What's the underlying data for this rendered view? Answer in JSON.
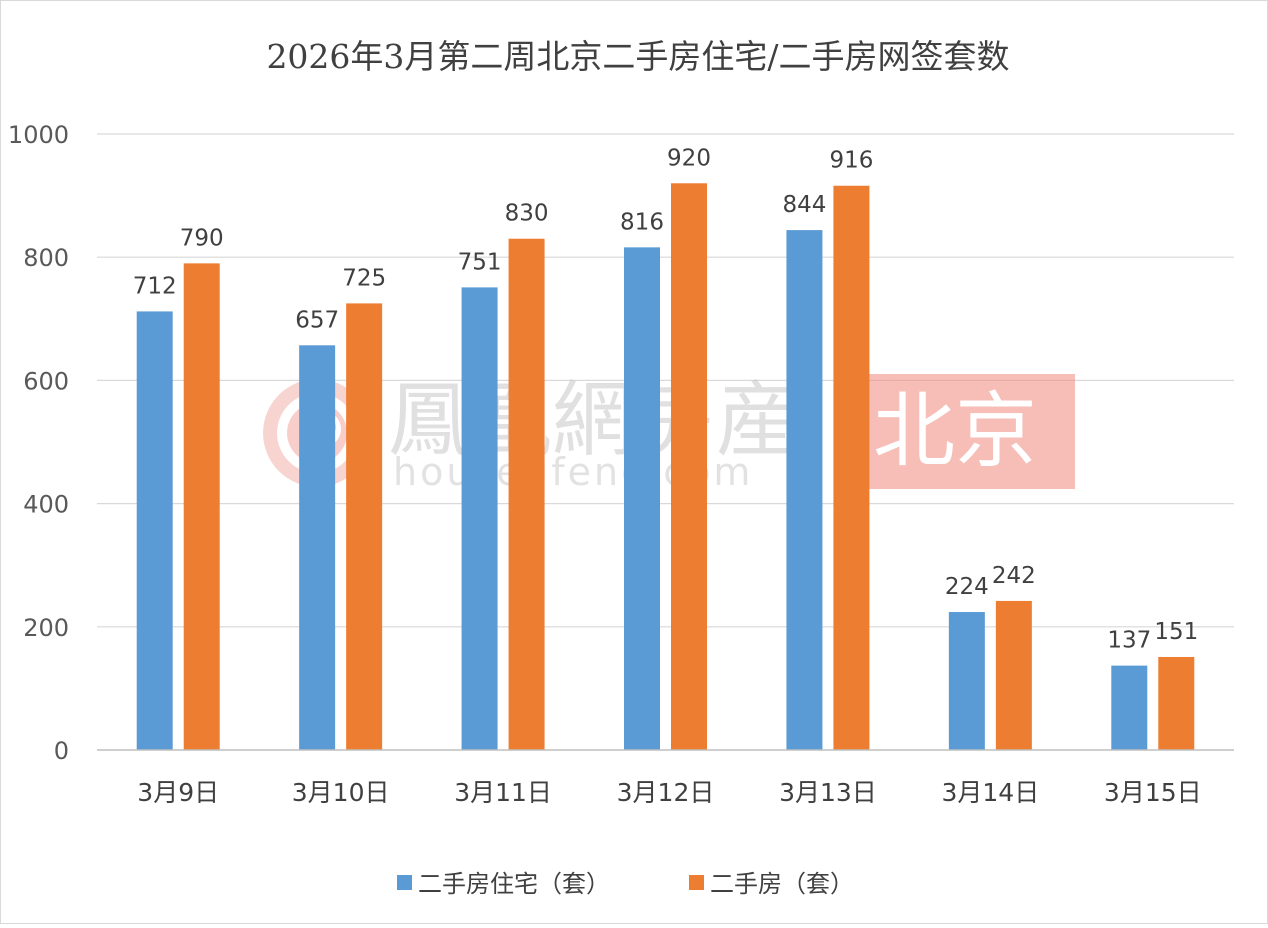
{
  "chart_data": {
    "type": "bar",
    "title": "2026年3月第二周北京二手房住宅/二手房网签套数",
    "categories": [
      "3月9日",
      "3月10日",
      "3月11日",
      "3月12日",
      "3月13日",
      "3月14日",
      "3月15日"
    ],
    "series": [
      {
        "name": "二手房住宅（套）",
        "color": "#5b9bd5",
        "values": [
          712,
          657,
          751,
          816,
          844,
          224,
          137
        ]
      },
      {
        "name": "二手房（套）",
        "color": "#ed7d31",
        "values": [
          790,
          725,
          830,
          920,
          916,
          242,
          151
        ]
      }
    ],
    "ylim": [
      0,
      1000
    ],
    "yticks": [
      0,
      200,
      400,
      600,
      800,
      1000
    ],
    "grid": true,
    "legend_position": "bottom",
    "data_labels": true
  },
  "watermark": {
    "brand": "鳳凰網房産",
    "url": "house.ifeng.com",
    "city": "北京",
    "accent": "#f08a7e"
  }
}
